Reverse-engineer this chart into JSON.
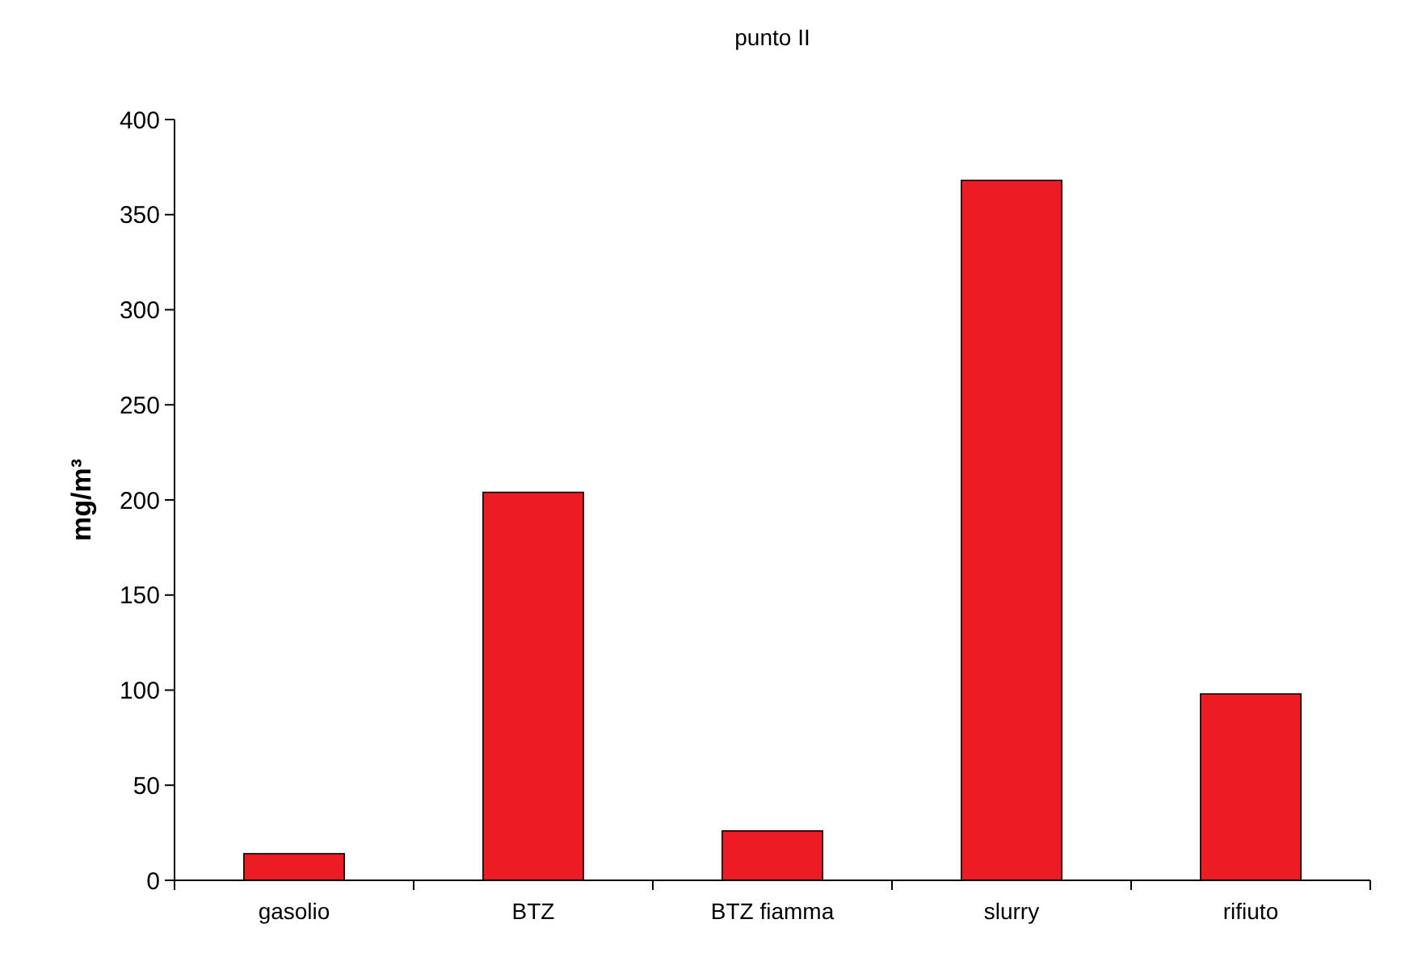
{
  "chart_data": {
    "type": "bar",
    "title": "punto II",
    "ylabel": "mg/m³",
    "categories": [
      "gasolio",
      "BTZ",
      "BTZ fiamma",
      "slurry",
      "rifiuto"
    ],
    "values": [
      14,
      204,
      26,
      368,
      98
    ],
    "color": "#ed1c24",
    "ylim": [
      0,
      400
    ],
    "yticks": [
      0,
      50,
      100,
      150,
      200,
      250,
      300,
      350,
      400
    ],
    "grid": false
  }
}
